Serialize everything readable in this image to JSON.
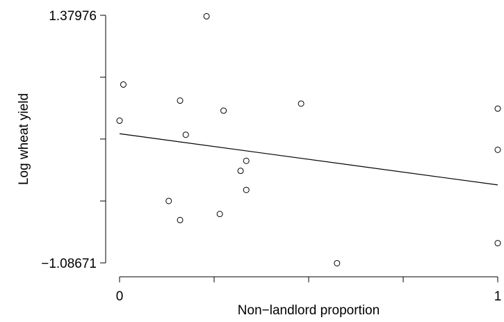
{
  "chart_data": {
    "type": "scatter",
    "title": "",
    "xlabel": "Non−landlord proportion",
    "ylabel": "Log wheat yield",
    "xlim": [
      0,
      1
    ],
    "ylim": [
      -1.08671,
      1.37976
    ],
    "x_tick_labels": [
      {
        "value": 0,
        "label": "0"
      },
      {
        "value": 1,
        "label": "1"
      }
    ],
    "x_ticks_unlabeled": [
      0.25,
      0.5,
      0.75
    ],
    "y_tick_labels": [
      {
        "value": -1.08671,
        "label": "−1.08671"
      },
      {
        "value": 1.37976,
        "label": "1.37976"
      }
    ],
    "y_ticks_unlabeled": [
      -0.47,
      0.147,
      0.763
    ],
    "grid": false,
    "legend": "none",
    "points": [
      {
        "x": 0.0,
        "y": 0.33
      },
      {
        "x": 0.01,
        "y": 0.69
      },
      {
        "x": 0.13,
        "y": -0.47
      },
      {
        "x": 0.16,
        "y": 0.53
      },
      {
        "x": 0.16,
        "y": -0.66
      },
      {
        "x": 0.175,
        "y": 0.19
      },
      {
        "x": 0.23,
        "y": 1.37
      },
      {
        "x": 0.265,
        "y": -0.6
      },
      {
        "x": 0.275,
        "y": 0.43
      },
      {
        "x": 0.32,
        "y": -0.17
      },
      {
        "x": 0.335,
        "y": -0.07
      },
      {
        "x": 0.335,
        "y": -0.36
      },
      {
        "x": 0.48,
        "y": 0.5
      },
      {
        "x": 0.575,
        "y": -1.09
      },
      {
        "x": 1.0,
        "y": 0.45
      },
      {
        "x": 1.0,
        "y": 0.04
      },
      {
        "x": 1.0,
        "y": -0.89
      }
    ],
    "fit_line": {
      "x": [
        0,
        1
      ],
      "y": [
        0.2,
        -0.31
      ]
    }
  }
}
